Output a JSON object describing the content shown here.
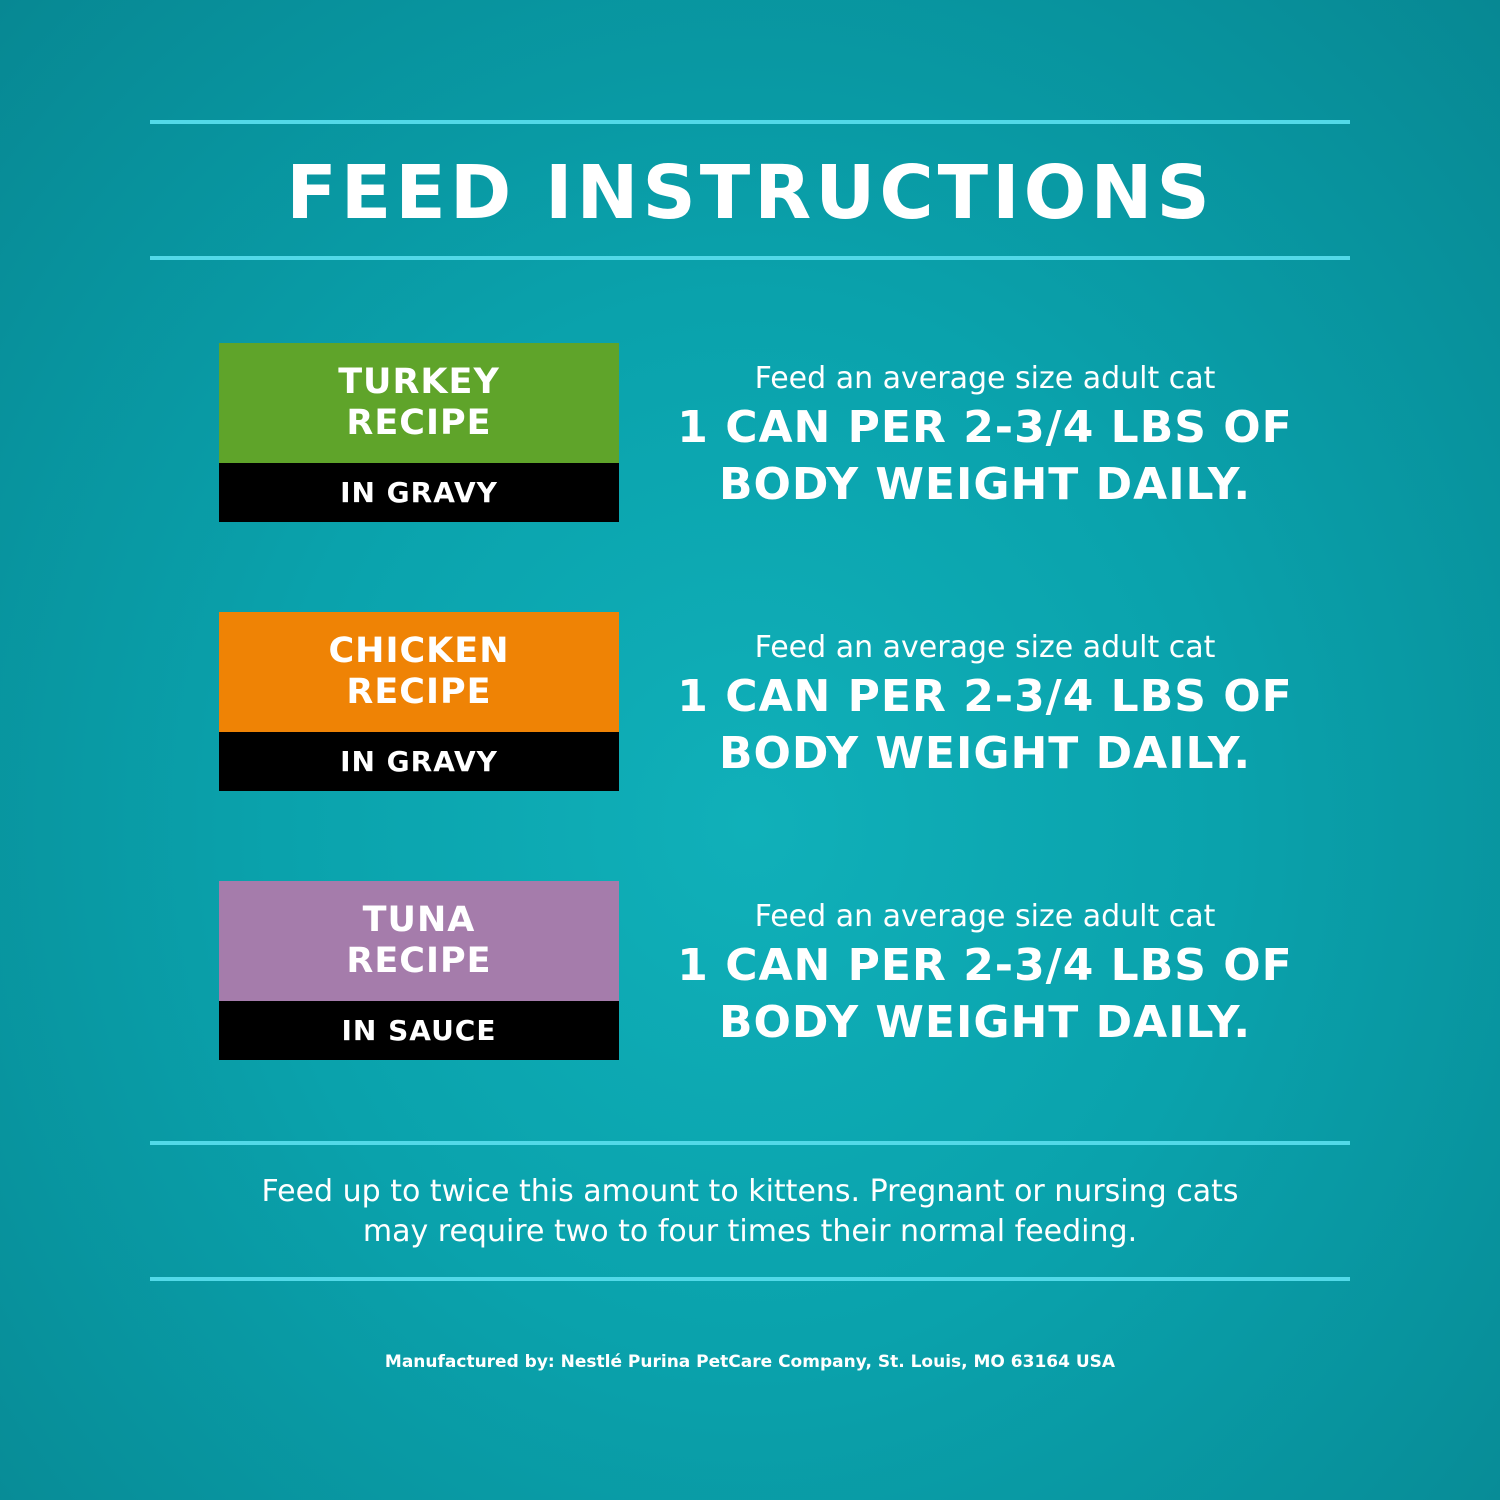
{
  "title": "FEED INSTRUCTIONS",
  "recipes": [
    {
      "name": [
        "TURKEY",
        "RECIPE"
      ],
      "style": "IN GRAVY",
      "color": "#5fa42a",
      "intro": "Feed an average size adult cat",
      "amount": [
        "1 CAN PER 2-3/4 LBS OF",
        "BODY WEIGHT DAILY."
      ]
    },
    {
      "name": [
        "CHICKEN",
        "RECIPE"
      ],
      "style": "IN GRAVY",
      "color": "#ef8305",
      "intro": "Feed an average size adult cat",
      "amount": [
        "1 CAN PER 2-3/4 LBS OF",
        "BODY WEIGHT DAILY."
      ]
    },
    {
      "name": [
        "TUNA",
        "RECIPE"
      ],
      "style": "IN SAUCE",
      "color": "#a57cab",
      "intro": "Feed an average size adult cat",
      "amount": [
        "1 CAN PER 2-3/4 LBS OF",
        "BODY WEIGHT DAILY."
      ]
    }
  ],
  "note": [
    "Feed up to twice this amount to kittens. Pregnant or nursing cats",
    "may require two to four times their normal feeding."
  ],
  "manufacturer": "Manufactured by: Nestlé Purina PetCare Company, St. Louis, MO 63164 USA"
}
